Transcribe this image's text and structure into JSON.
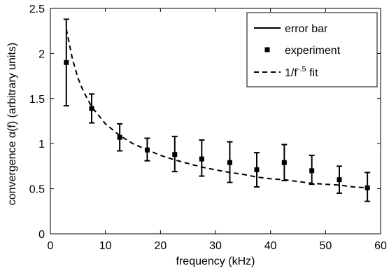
{
  "chart_data": {
    "type": "scatter",
    "title": "",
    "xlabel": "frequency (kHz)",
    "ylabel": "convergence α(f) (arbitrary units)",
    "xlim": [
      0,
      60
    ],
    "ylim": [
      0,
      2.5
    ],
    "x_ticks": [
      "0",
      "10",
      "20",
      "30",
      "40",
      "50",
      "60"
    ],
    "y_ticks": [
      "0",
      "0.5",
      "1",
      "1.5",
      "2",
      "2.5"
    ],
    "grid": false,
    "legend_position": "top-right",
    "legend": {
      "error_bar": "error bar",
      "experiment": "experiment",
      "fit_prefix": "1/f",
      "fit_exponent": "-.5",
      "fit_suffix": " fit"
    },
    "series": [
      {
        "name": "experiment",
        "x": [
          2.9,
          7.5,
          12.6,
          17.6,
          22.6,
          27.5,
          32.6,
          37.5,
          42.5,
          47.5,
          52.5,
          57.6
        ],
        "y": [
          1.9,
          1.39,
          1.07,
          0.93,
          0.88,
          0.83,
          0.79,
          0.71,
          0.79,
          0.7,
          0.6,
          0.51
        ],
        "y_low": [
          1.42,
          1.23,
          0.92,
          0.81,
          0.69,
          0.64,
          0.57,
          0.52,
          0.59,
          0.55,
          0.45,
          0.36
        ],
        "y_high": [
          2.38,
          1.55,
          1.22,
          1.06,
          1.08,
          1.04,
          1.02,
          0.9,
          0.99,
          0.87,
          0.75,
          0.68
        ]
      },
      {
        "name": "1/f^-.5 fit",
        "x": [
          2.9,
          4,
          5,
          6,
          7.5,
          10,
          12.6,
          15,
          17.6,
          20,
          22.6,
          25,
          27.5,
          30,
          32.6,
          35,
          37.5,
          40,
          42.5,
          45,
          47.5,
          50,
          52.5,
          55,
          57.6
        ],
        "y": [
          2.27,
          1.94,
          1.73,
          1.58,
          1.41,
          1.22,
          1.09,
          1.0,
          0.93,
          0.87,
          0.82,
          0.78,
          0.74,
          0.71,
          0.68,
          0.66,
          0.63,
          0.61,
          0.6,
          0.58,
          0.56,
          0.55,
          0.54,
          0.52,
          0.51
        ]
      }
    ]
  }
}
